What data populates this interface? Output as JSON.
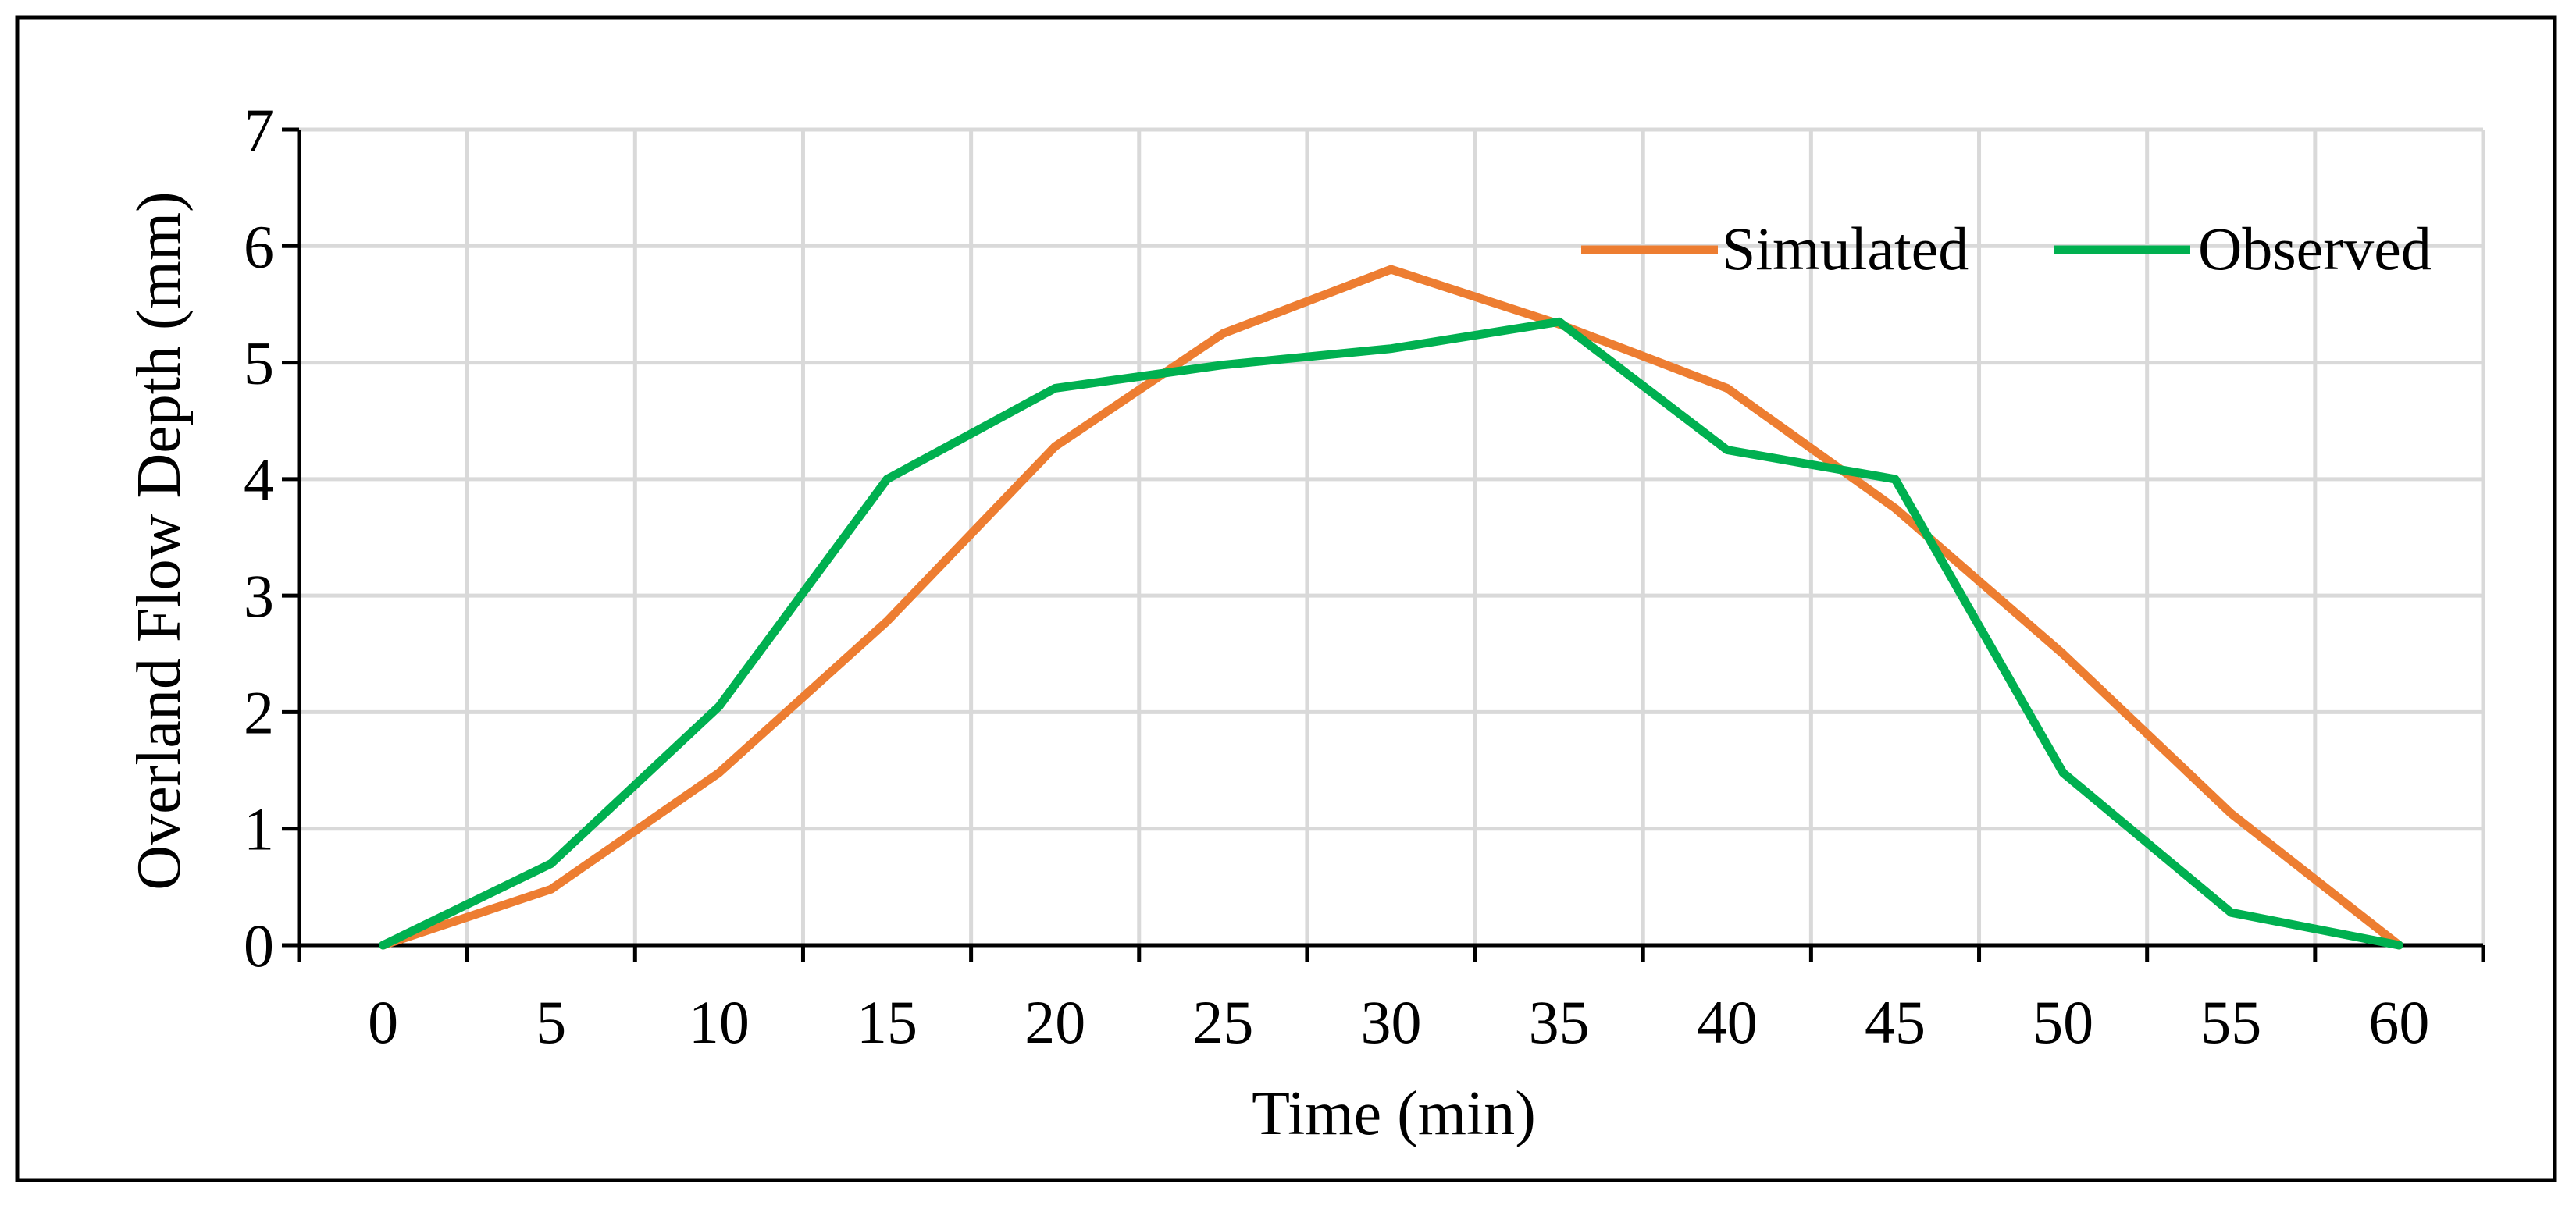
{
  "chart_data": {
    "type": "line",
    "title": "",
    "xlabel": "Time (min)",
    "ylabel": "Overland Flow Depth (mm)",
    "x": [
      0,
      5,
      10,
      15,
      20,
      25,
      30,
      35,
      40,
      45,
      50,
      55,
      60
    ],
    "x_tick_labels": [
      "0",
      "5",
      "10",
      "15",
      "20",
      "25",
      "30",
      "35",
      "40",
      "45",
      "50",
      "55",
      "60"
    ],
    "y_tick_labels": [
      "0",
      "1",
      "2",
      "3",
      "4",
      "5",
      "6",
      "7"
    ],
    "ylim": [
      0,
      7
    ],
    "grid": true,
    "legend_position": "top-right",
    "series": [
      {
        "name": "Simulated",
        "color": "#ED7D31",
        "values": [
          0,
          0.48,
          1.48,
          2.78,
          4.28,
          5.25,
          5.8,
          5.33,
          4.78,
          3.75,
          2.5,
          1.13,
          0
        ]
      },
      {
        "name": "Observed",
        "color": "#00B050",
        "values": [
          0,
          0.7,
          2.05,
          4.0,
          4.78,
          4.98,
          5.12,
          5.35,
          4.25,
          4.0,
          1.48,
          0.28,
          0
        ]
      }
    ]
  }
}
